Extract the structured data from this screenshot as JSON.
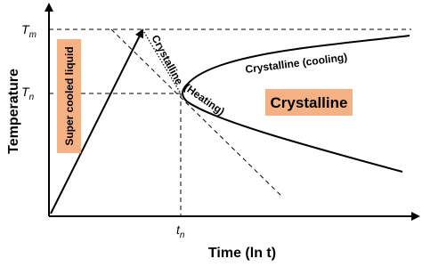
{
  "axes": {
    "y_label": "Temperature",
    "x_label": "Time (ln t)",
    "y_marks": [
      {
        "symbol": "T",
        "subscript": "m"
      },
      {
        "symbol": "T",
        "subscript": "n"
      }
    ],
    "x_marks": [
      {
        "symbol": "t",
        "subscript": "n"
      }
    ]
  },
  "regions": {
    "liquid": "Super cooled liquid",
    "crystalline": "Crystalline"
  },
  "curve_labels": {
    "heating_top": "Crystalline",
    "heating_bottom": "(Heating)",
    "cooling": "Crystalline (cooling)"
  }
}
